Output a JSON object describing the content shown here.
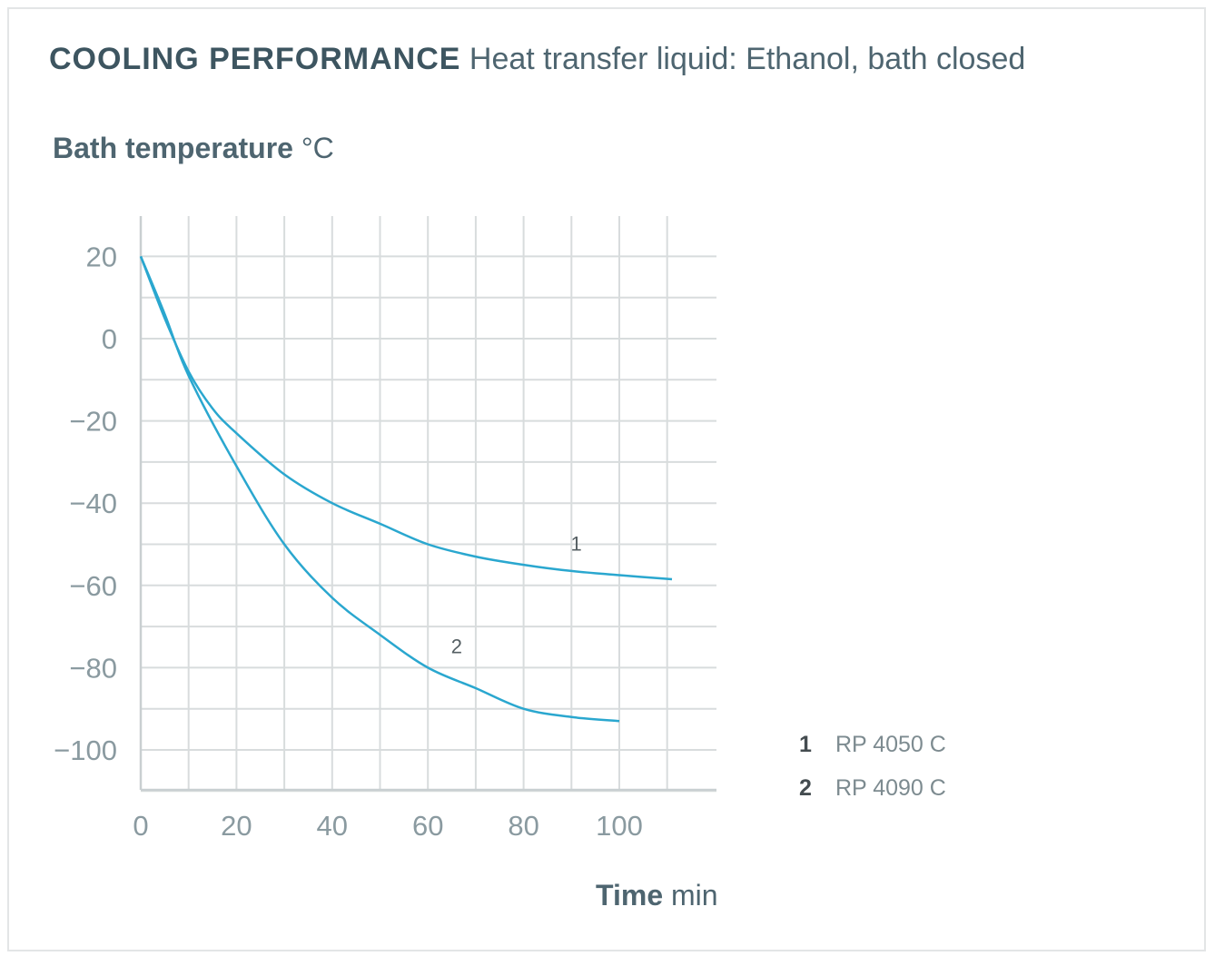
{
  "header": {
    "title_bold": "COOLING PERFORMANCE",
    "title_rest": "Heat transfer liquid: Ethanol, bath closed"
  },
  "chart_data": {
    "type": "line",
    "ylabel_bold": "Bath temperature",
    "ylabel_unit": "°C",
    "xlabel_bold": "Time",
    "xlabel_unit": "min",
    "xlim": [
      0,
      120
    ],
    "ylim": [
      -110,
      30
    ],
    "x_ticks": [
      0,
      20,
      40,
      60,
      80,
      100
    ],
    "y_ticks": [
      20,
      0,
      -20,
      -40,
      -60,
      -80,
      -100
    ],
    "y_tick_labels": [
      "20",
      "0",
      "−20",
      "−40",
      "−60",
      "−80",
      "−100"
    ],
    "grid": true,
    "series": [
      {
        "name": "RP 4050 C",
        "label": "1",
        "color": "#2aa7cf",
        "x": [
          0,
          5,
          10,
          15,
          20,
          30,
          40,
          50,
          60,
          70,
          80,
          90,
          100,
          111
        ],
        "y": [
          20,
          5,
          -8,
          -17,
          -23,
          -33,
          -40,
          -45,
          -50,
          -53,
          -55,
          -56.5,
          -57.5,
          -58.5
        ]
      },
      {
        "name": "RP 4090 C",
        "label": "2",
        "color": "#2aa7cf",
        "x": [
          0,
          5,
          10,
          20,
          30,
          40,
          50,
          60,
          70,
          80,
          90,
          100
        ],
        "y": [
          20,
          6,
          -9,
          -31,
          -50,
          -63,
          -72,
          -80,
          -85,
          -90,
          -92,
          -93
        ]
      }
    ],
    "legend": [
      {
        "num": "1",
        "name": "RP 4050 C"
      },
      {
        "num": "2",
        "name": "RP 4090 C"
      }
    ]
  }
}
